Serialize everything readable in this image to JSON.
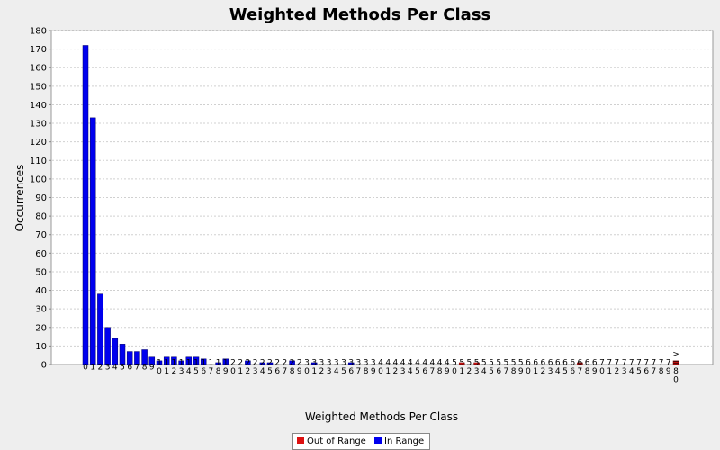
{
  "chart_data": {
    "type": "bar",
    "title": "Weighted Methods Per Class",
    "xlabel": "Weighted Methods Per Class",
    "ylabel": "Occurrences",
    "ylim": [
      0,
      180
    ],
    "y_ticks": [
      0,
      10,
      20,
      30,
      40,
      50,
      60,
      70,
      80,
      90,
      100,
      110,
      120,
      130,
      140,
      150,
      160,
      170,
      180
    ],
    "grid": true,
    "legend_position": "bottom",
    "categories": [
      "0",
      "1",
      "2",
      "3",
      "4",
      "5",
      "6",
      "7",
      "8",
      "9",
      "10",
      "11",
      "12",
      "13",
      "14",
      "15",
      "16",
      "17",
      "18",
      "19",
      "20",
      "21",
      "22",
      "23",
      "24",
      "25",
      "26",
      "27",
      "28",
      "29",
      "30",
      "31",
      "32",
      "33",
      "34",
      "35",
      "36",
      "37",
      "38",
      "39",
      "40",
      "41",
      "42",
      "43",
      "44",
      "45",
      "46",
      "47",
      "48",
      "49",
      "50",
      "51",
      "52",
      "53",
      "54",
      "55",
      "56",
      "57",
      "58",
      "59",
      "60",
      "61",
      "62",
      "63",
      "64",
      "65",
      "66",
      "67",
      "68",
      "69",
      "70",
      "71",
      "72",
      "73",
      "74",
      "75",
      "76",
      "77",
      "78",
      "79",
      ">=80"
    ],
    "values": [
      172,
      133,
      38,
      20,
      14,
      11,
      7,
      7,
      8,
      4,
      2,
      4,
      4,
      2,
      4,
      4,
      3,
      0,
      1,
      3,
      0,
      0,
      2,
      0,
      1,
      1,
      0,
      0,
      2,
      0,
      0,
      1,
      0,
      0,
      0,
      0,
      1,
      0,
      0,
      0,
      0,
      0,
      0,
      0,
      0,
      0,
      0,
      0,
      0,
      0,
      0,
      1,
      0,
      1,
      0,
      0,
      0,
      0,
      0,
      0,
      0,
      0,
      0,
      0,
      0,
      0,
      0,
      1,
      0,
      0,
      0,
      0,
      0,
      0,
      0,
      0,
      0,
      0,
      0,
      0,
      2
    ],
    "out_of_range": [
      51,
      53,
      67,
      80
    ],
    "series": [
      {
        "name": "Out of Range",
        "color": "#dd1111"
      },
      {
        "name": "In Range",
        "color": "#0000ee"
      }
    ]
  },
  "legend": {
    "out_of_range_label": "Out of Range",
    "in_range_label": "In Range"
  }
}
